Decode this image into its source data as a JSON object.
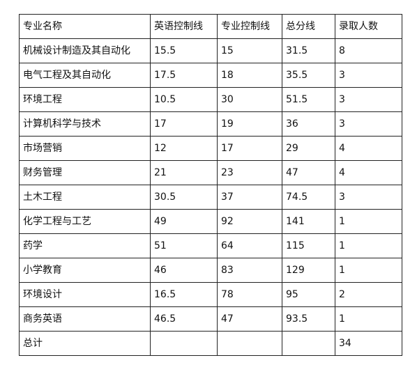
{
  "table": {
    "headers": [
      "专业名称",
      "英语控制线",
      "专业控制线",
      "总分线",
      "录取人数"
    ],
    "rows": [
      [
        "机械设计制造及其自动化",
        "15.5",
        "15",
        "31.5",
        "8"
      ],
      [
        "电气工程及其自动化",
        "17.5",
        "18",
        "35.5",
        "3"
      ],
      [
        "环境工程",
        "10.5",
        "30",
        "51.5",
        "3"
      ],
      [
        "计算机科学与技术",
        "17",
        "19",
        "36",
        "3"
      ],
      [
        "市场营销",
        "12",
        "17",
        "29",
        "4"
      ],
      [
        "财务管理",
        "21",
        "23",
        "47",
        "4"
      ],
      [
        "土木工程",
        "30.5",
        "37",
        "74.5",
        "3"
      ],
      [
        "化学工程与工艺",
        "49",
        "92",
        "141",
        "1"
      ],
      [
        "药学",
        "51",
        "64",
        "115",
        "1"
      ],
      [
        "小学教育",
        "46",
        "83",
        "129",
        "1"
      ],
      [
        "环境设计",
        "16.5",
        "78",
        "95",
        "2"
      ],
      [
        "商务英语",
        "46.5",
        "47",
        "93.5",
        "1"
      ],
      [
        "总计",
        "",
        "",
        "",
        "34"
      ]
    ]
  }
}
